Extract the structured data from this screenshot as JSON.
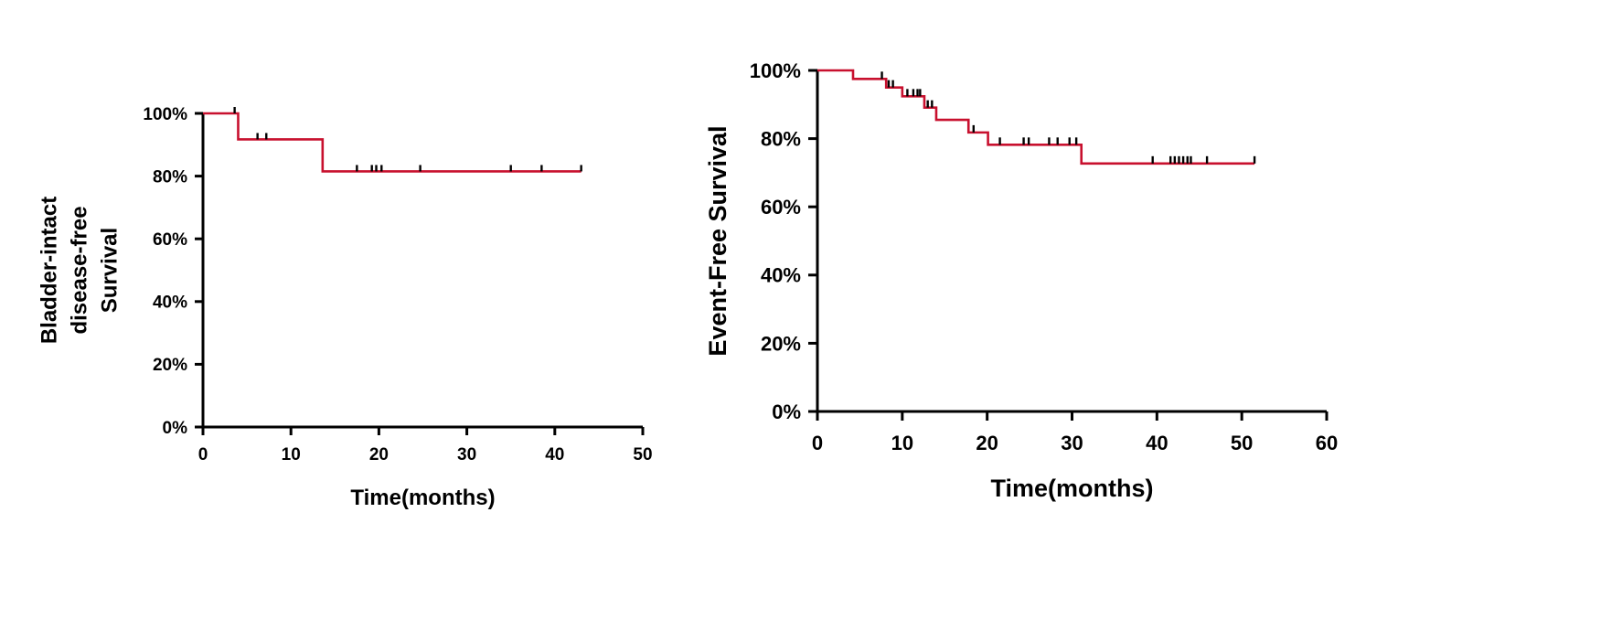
{
  "chart_data": [
    {
      "type": "line",
      "subtype": "kaplan-meier",
      "title": "",
      "xlabel": "Time(months)",
      "ylabel_lines": [
        "Bladder-intact",
        "disease-free",
        "Survival"
      ],
      "xlim": [
        0,
        50
      ],
      "ylim": [
        0,
        100
      ],
      "x_ticks": [
        0,
        10,
        20,
        30,
        40,
        50
      ],
      "y_ticks": [
        0,
        20,
        40,
        60,
        80,
        100
      ],
      "x_tick_labels": [
        "0",
        "10",
        "20",
        "30",
        "40",
        "50"
      ],
      "y_tick_labels": [
        "0%",
        "20%",
        "40%",
        "60%",
        "80%",
        "100%"
      ],
      "series": [
        {
          "color": "#c8102e",
          "steps": [
            [
              0,
              100
            ],
            [
              4.0,
              91.7
            ],
            [
              13.6,
              81.5
            ],
            [
              43.0,
              81.5
            ]
          ],
          "censored": [
            [
              3.6,
              100
            ],
            [
              6.2,
              91.7
            ],
            [
              7.2,
              91.7
            ],
            [
              17.5,
              81.5
            ],
            [
              19.2,
              81.5
            ],
            [
              19.7,
              81.5
            ],
            [
              20.3,
              81.5
            ],
            [
              24.7,
              81.5
            ],
            [
              35.0,
              81.5
            ],
            [
              38.5,
              81.5
            ],
            [
              43.0,
              81.5
            ]
          ]
        }
      ]
    },
    {
      "type": "line",
      "subtype": "kaplan-meier",
      "title": "",
      "xlabel": "Time(months)",
      "ylabel_lines": [
        "Event-Free Survival"
      ],
      "xlim": [
        0,
        60
      ],
      "ylim": [
        0,
        100
      ],
      "x_ticks": [
        0,
        10,
        20,
        30,
        40,
        50,
        60
      ],
      "y_ticks": [
        0,
        20,
        40,
        60,
        80,
        100
      ],
      "x_tick_labels": [
        "0",
        "10",
        "20",
        "30",
        "40",
        "50",
        "60"
      ],
      "y_tick_labels": [
        "0%",
        "20%",
        "40%",
        "60%",
        "80%",
        "100%"
      ],
      "series": [
        {
          "color": "#c8102e",
          "steps": [
            [
              0,
              100
            ],
            [
              4.2,
              97.5
            ],
            [
              8.1,
              95.0
            ],
            [
              10.0,
              92.4
            ],
            [
              12.6,
              89.1
            ],
            [
              14.0,
              85.5
            ],
            [
              17.8,
              81.8
            ],
            [
              20.1,
              78.2
            ],
            [
              31.1,
              72.7
            ],
            [
              51.5,
              72.7
            ]
          ],
          "censored": [
            [
              7.6,
              97.5
            ],
            [
              8.4,
              95.0
            ],
            [
              8.9,
              95.0
            ],
            [
              10.6,
              92.4
            ],
            [
              11.3,
              92.4
            ],
            [
              11.8,
              92.4
            ],
            [
              12.1,
              92.4
            ],
            [
              13.0,
              89.1
            ],
            [
              13.5,
              89.1
            ],
            [
              18.4,
              81.8
            ],
            [
              21.5,
              78.2
            ],
            [
              24.3,
              78.2
            ],
            [
              24.9,
              78.2
            ],
            [
              27.3,
              78.2
            ],
            [
              28.3,
              78.2
            ],
            [
              29.7,
              78.2
            ],
            [
              30.5,
              78.2
            ],
            [
              39.5,
              72.7
            ],
            [
              41.6,
              72.7
            ],
            [
              42.1,
              72.7
            ],
            [
              42.6,
              72.7
            ],
            [
              43.1,
              72.7
            ],
            [
              43.6,
              72.7
            ],
            [
              44.0,
              72.7
            ],
            [
              45.9,
              72.7
            ],
            [
              51.5,
              72.7
            ]
          ]
        }
      ]
    }
  ]
}
